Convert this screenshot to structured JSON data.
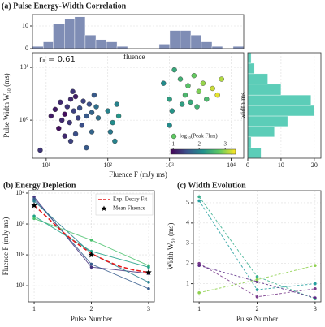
{
  "chart_data": [
    {
      "type": "scatter",
      "title": "(a) Pulse Energy-Width Correlation",
      "xlabel": "Fluence F (mJy ms)",
      "ylabel": "Pulse Width W₅₀ (ms)",
      "annotation": "rₛ = 0.61",
      "note": "fluence",
      "colorbar_label": "log₁₀(Peak Flux)",
      "colormap": "viridis",
      "clim": [
        0.9,
        3.4
      ],
      "cticks": [
        1,
        2,
        3
      ],
      "x_log": true,
      "y_log": true,
      "grid": true,
      "xlim": [
        6,
        16000
      ],
      "ylim": [
        0.19,
        19
      ],
      "xticks": [
        {
          "value": 10,
          "label": "10¹"
        },
        {
          "value": 100,
          "label": "10²"
        },
        {
          "value": 1000,
          "label": "10³"
        },
        {
          "value": 10000,
          "label": "10⁴"
        }
      ],
      "yticks": [
        {
          "value": 1,
          "label": "10⁰"
        },
        {
          "value": 10,
          "label": "10¹"
        }
      ],
      "x": [
        14,
        17,
        20,
        22,
        25,
        28,
        30,
        18,
        24,
        35,
        40,
        45,
        50,
        55,
        60,
        33,
        27,
        38,
        12,
        16,
        65,
        70,
        8,
        25,
        45,
        30,
        55,
        20,
        100,
        120,
        140,
        150,
        110,
        130,
        800,
        1000,
        1200,
        1500,
        1800,
        2000,
        2200,
        2500,
        3000,
        3500,
        4000,
        5000,
        6000,
        1100,
        1600,
        2800,
        1000,
        7000
      ],
      "values": [
        1.6,
        2.2,
        1.3,
        1.8,
        2.5,
        1.5,
        2.8,
        1.0,
        0.9,
        1.7,
        2.3,
        1.2,
        2.0,
        1.4,
        3.0,
        1.1,
        3.5,
        0.8,
        1.2,
        0.7,
        1.8,
        1.1,
        0.27,
        0.4,
        0.3,
        0.55,
        0.6,
        0.5,
        1.5,
        0.9,
        2.0,
        1.2,
        0.6,
        0.4,
        5,
        2.5,
        9,
        6,
        3,
        4.5,
        2.2,
        7,
        3.5,
        5,
        2.5,
        4,
        3,
        1.5,
        2.0,
        1.8,
        0.8,
        6
      ],
      "color_values": [
        1.1,
        1.2,
        1.0,
        1.3,
        1.2,
        1.4,
        1.1,
        1.2,
        1.3,
        1.5,
        1.4,
        1.6,
        1.5,
        1.7,
        1.6,
        1.4,
        1.3,
        1.5,
        1.1,
        1.0,
        1.8,
        1.8,
        1.3,
        1.4,
        1.6,
        1.5,
        1.7,
        1.2,
        2.0,
        2.1,
        2.0,
        2.2,
        1.9,
        2.0,
        2.1,
        2.3,
        2.4,
        2.5,
        2.6,
        2.7,
        2.4,
        2.8,
        2.9,
        3.0,
        2.6,
        3.2,
        3.3,
        2.2,
        2.3,
        2.5,
        2.1,
        3.1
      ]
    },
    {
      "type": "histogram",
      "color": "#7f8db5",
      "ylim": [
        0,
        15
      ],
      "yticks": [
        0,
        10
      ],
      "bins": [
        6,
        9,
        13,
        20,
        29,
        43,
        64,
        95,
        141,
        209,
        310,
        459,
        681,
        1011,
        1500,
        2223,
        3297,
        4897,
        7260,
        10770,
        16000
      ],
      "values": [
        1,
        3,
        11,
        13,
        14,
        6,
        4,
        3,
        1,
        0,
        0,
        0,
        2,
        8,
        8,
        6,
        3,
        1,
        0,
        1
      ]
    },
    {
      "type": "histogram",
      "orientation": "horizontal",
      "color": "#5ccdb8",
      "xlabel": "width ms",
      "xlim": [
        0,
        22
      ],
      "xticks": [
        0,
        10,
        20
      ],
      "bins": [
        0.19,
        0.3,
        0.48,
        0.76,
        1.2,
        1.9,
        3.0,
        4.8,
        7.6,
        12,
        19
      ],
      "values": [
        4,
        1,
        8,
        12,
        20,
        19,
        10,
        6,
        2,
        1
      ]
    },
    {
      "type": "line",
      "title": "(b) Energy Depletion",
      "xlabel": "Pulse Number",
      "ylabel": "Fluence F (mJy ms)",
      "y_log": true,
      "grid": true,
      "legend": "upper right",
      "x": [
        1,
        2,
        3
      ],
      "xlim": [
        0.9,
        3.1
      ],
      "xticks": [
        1,
        2,
        3
      ],
      "ylim": [
        3,
        12000
      ],
      "yticks": [
        {
          "value": 10,
          "label": "10¹"
        },
        {
          "value": 100,
          "label": "10²"
        },
        {
          "value": 1000,
          "label": "10³"
        },
        {
          "value": 10000,
          "label": "10⁴"
        }
      ],
      "series": [
        {
          "color": "#46327e",
          "values": [
            7500,
            40,
            25
          ]
        },
        {
          "color": "#365c8d",
          "values": [
            6500,
            50,
            8
          ]
        },
        {
          "color": "#277f8e",
          "values": [
            5500,
            110,
            13
          ]
        },
        {
          "color": "#4ac16d",
          "values": [
            1500,
            300,
            45
          ]
        },
        {
          "color": "#1fa187",
          "values": [
            1800,
            130,
            40
          ]
        },
        {
          "name": "Exp. Decay Fit",
          "color": "#e41a1c",
          "dashed": true,
          "x": [
            1,
            1.25,
            1.5,
            1.75,
            2,
            2.25,
            2.5,
            2.75,
            3
          ],
          "values": [
            4000,
            1500,
            550,
            230,
            110,
            65,
            42,
            32,
            27
          ]
        },
        {
          "name": "Mean Fluence",
          "color": "#000000",
          "marker": "star",
          "values": [
            4000,
            100,
            27
          ]
        }
      ]
    },
    {
      "type": "line",
      "title": "(c) Width Evolution",
      "xlabel": "Pulse Number",
      "ylabel": "Width W₅₀ (ms)",
      "grid": true,
      "x": [
        1,
        2,
        3
      ],
      "xlim": [
        0.9,
        3.1
      ],
      "xticks": [
        1,
        2,
        3
      ],
      "ylim": [
        0.1,
        5.6
      ],
      "yticks": [
        1,
        2,
        3,
        4,
        5
      ],
      "series": [
        {
          "color": "#3bb08f",
          "dashed": true,
          "values": [
            5.3,
            1.35,
            0.25
          ]
        },
        {
          "color": "#26a0a0",
          "dashed": true,
          "values": [
            5.1,
            0.7,
            1.0
          ]
        },
        {
          "color": "#7a3c8c",
          "dashed": true,
          "values": [
            2.0,
            0.35,
            0.75
          ]
        },
        {
          "color": "#5b2a86",
          "dashed": true,
          "values": [
            1.9,
            1.1,
            0.3
          ]
        },
        {
          "color": "#8fd14f",
          "dashed": true,
          "values": [
            0.55,
            1.2,
            1.9
          ]
        }
      ]
    }
  ]
}
